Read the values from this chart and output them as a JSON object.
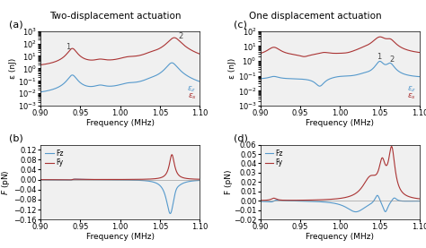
{
  "title_left": "Two-displacement actuation",
  "title_right": "One displacement actuation",
  "xlabel": "Frequency (MHz)",
  "ylabel_energy": "ε (nJ)",
  "ylabel_force_b": "F̅ (pN)",
  "ylabel_force_d": "F (pN)",
  "xrange": [
    0.9,
    1.1
  ],
  "xticks": [
    0.9,
    0.95,
    1.0,
    1.05,
    1.1
  ],
  "panel_labels": [
    "(a)",
    "(b)",
    "(c)",
    "(d)"
  ],
  "blue_color": "#5599cc",
  "red_color": "#aa3333",
  "background_color": "#f0f0f0",
  "ylim_a": [
    0.001,
    1000
  ],
  "ylim_c": [
    0.001,
    100
  ],
  "ylim_b": [
    -0.16,
    0.14
  ],
  "ylim_d": [
    -0.02,
    0.06
  ],
  "yticks_b": [
    -0.16,
    -0.12,
    -0.08,
    -0.04,
    0.0,
    0.04,
    0.08,
    0.12
  ],
  "yticks_d": [
    -0.02,
    -0.01,
    0.0,
    0.01,
    0.02,
    0.03,
    0.04,
    0.05,
    0.06
  ]
}
